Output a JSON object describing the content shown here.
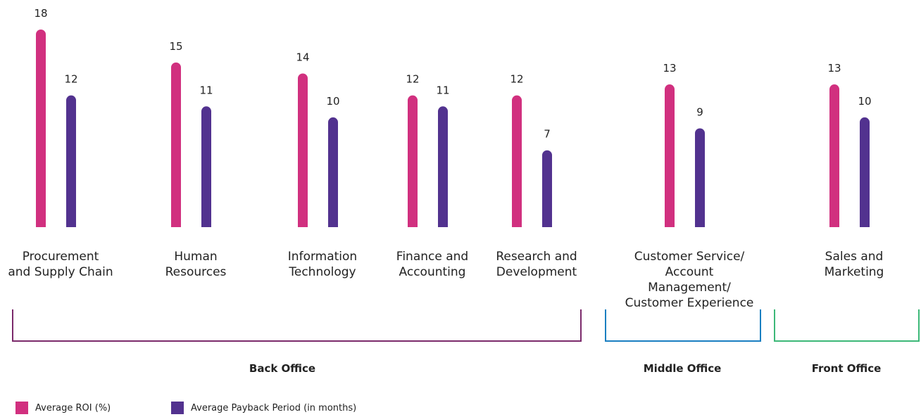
{
  "chart_data": {
    "type": "bar",
    "categories": [
      "Procurement\nand Supply Chain",
      "Human\nResources",
      "Information\nTechnology",
      "Finance and\nAccounting",
      "Research and\nDevelopment",
      "Customer Service/\nAccount\nManagement/\nCustomer Experience",
      "Sales and\nMarketing"
    ],
    "series": [
      {
        "name": "Average ROI (%)",
        "color": "#d1307f",
        "values": [
          18,
          15,
          14,
          12,
          12,
          13,
          13
        ]
      },
      {
        "name": "Average Payback Period (in months)",
        "color": "#52328f",
        "values": [
          12,
          11,
          10,
          11,
          7,
          9,
          10
        ]
      }
    ],
    "groups": [
      "Back Office",
      "Middle Office",
      "Front Office"
    ]
  }
}
